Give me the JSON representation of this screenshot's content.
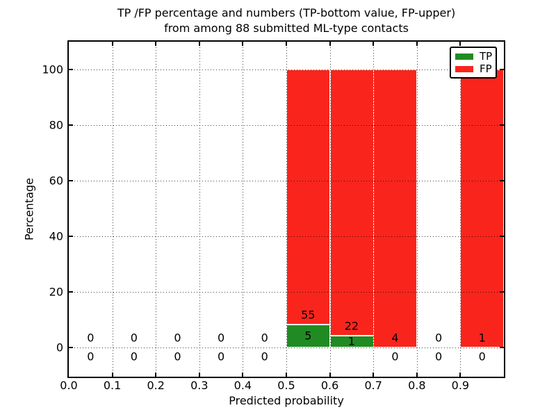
{
  "title": {
    "line1": "TP /FP percentage and numbers (TP-bottom value, FP-upper)",
    "line2": "from among 88 submitted ML-type contacts"
  },
  "axes": {
    "xlabel": "Predicted probability",
    "ylabel": "Percentage",
    "xtick_labels": [
      "0.0",
      "0.1",
      "0.2",
      "0.3",
      "0.4",
      "0.5",
      "0.6",
      "0.7",
      "0.8",
      "0.9"
    ],
    "ytick_labels": [
      "0",
      "20",
      "40",
      "60",
      "80",
      "100"
    ],
    "ytick_values": [
      0,
      20,
      40,
      60,
      80,
      100
    ],
    "grid_style": "dotted"
  },
  "legend": {
    "position": "upper right",
    "items": [
      {
        "label": "TP",
        "color": "#208b22"
      },
      {
        "label": "FP",
        "color": "#f9251c"
      }
    ]
  },
  "chart_data": {
    "type": "bar",
    "stacked": true,
    "normalized": "each bin stacked to 100%",
    "title": "TP /FP percentage and numbers (TP-bottom value, FP-upper) from among 88 submitted ML-type contacts",
    "xlabel": "Predicted probability",
    "ylabel": "Percentage",
    "total_contacts": 88,
    "bin_width": 0.1,
    "categories": [
      "0.0",
      "0.1",
      "0.2",
      "0.3",
      "0.4",
      "0.5",
      "0.6",
      "0.7",
      "0.8",
      "0.9"
    ],
    "series": [
      {
        "name": "TP",
        "color": "#208b22",
        "counts": [
          0,
          0,
          0,
          0,
          0,
          5,
          1,
          0,
          0,
          0
        ],
        "percent": [
          0,
          0,
          0,
          0,
          0,
          8.33,
          4.35,
          0,
          0,
          0
        ]
      },
      {
        "name": "FP",
        "color": "#f9251c",
        "counts": [
          0,
          0,
          0,
          0,
          0,
          55,
          22,
          4,
          0,
          1
        ],
        "percent": [
          0,
          0,
          0,
          0,
          0,
          91.67,
          95.65,
          100,
          0,
          100
        ]
      }
    ],
    "label_rule": "TP count shown at bottom (inside green bar or below axis), FP count shown above",
    "xlim": [
      0,
      1
    ],
    "ylim": [
      -10.5,
      110
    ],
    "grid": true,
    "legend_position": "upper right"
  }
}
